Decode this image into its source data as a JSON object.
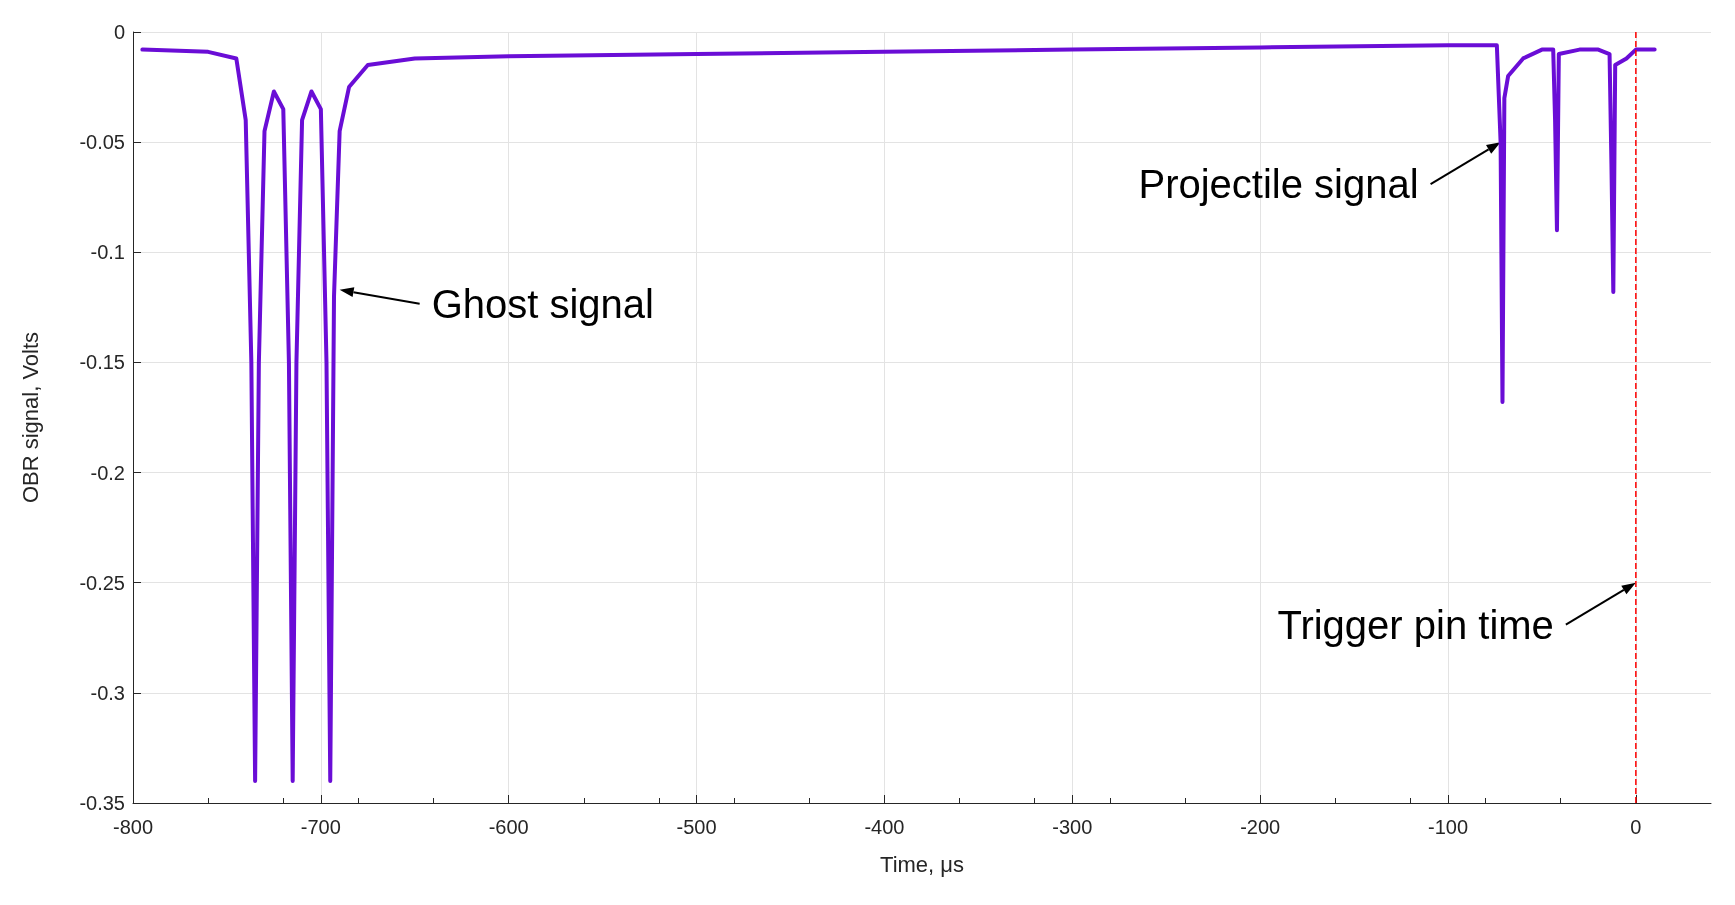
{
  "chart_data": {
    "type": "line",
    "xlabel": "Time, μs",
    "ylabel": "OBR signal, Volts",
    "xlim": [
      -800,
      40
    ],
    "xticks": [
      -800,
      -700,
      -600,
      -500,
      -400,
      -300,
      -200,
      -100,
      0
    ],
    "ylim": [
      -0.35,
      0
    ],
    "yticks": [
      -0.35,
      -0.3,
      -0.25,
      -0.2,
      -0.15,
      -0.1,
      -0.05,
      0
    ],
    "grid": true,
    "marker": "none",
    "line_style": "solid",
    "series": [
      {
        "color": "#6a0dd6",
        "x": [
          -795,
          -760,
          -745,
          -740,
          -737,
          -735,
          -733,
          -730,
          -725,
          -720,
          -717,
          -715,
          -713,
          -710,
          -705,
          -700,
          -697,
          -695,
          -693,
          -690,
          -685,
          -675,
          -650,
          -600,
          -500,
          -400,
          -300,
          -200,
          -100,
          -74,
          -72,
          -71,
          -70,
          -68,
          -60,
          -50,
          -44,
          -43,
          -42,
          -41,
          -30,
          -20,
          -14,
          -13,
          -12,
          -11,
          -5,
          0,
          10
        ],
        "values": [
          -0.008,
          -0.009,
          -0.012,
          -0.04,
          -0.15,
          -0.34,
          -0.15,
          -0.045,
          -0.027,
          -0.035,
          -0.15,
          -0.34,
          -0.15,
          -0.04,
          -0.027,
          -0.035,
          -0.15,
          -0.34,
          -0.12,
          -0.045,
          -0.025,
          -0.015,
          -0.012,
          -0.011,
          -0.01,
          -0.009,
          -0.008,
          -0.007,
          -0.006,
          -0.006,
          -0.05,
          -0.168,
          -0.03,
          -0.02,
          -0.012,
          -0.008,
          -0.008,
          -0.04,
          -0.09,
          -0.01,
          -0.008,
          -0.008,
          -0.01,
          -0.06,
          -0.118,
          -0.015,
          -0.012,
          -0.008,
          -0.008
        ]
      }
    ],
    "ref_lines": [
      {
        "axis": "x",
        "value": 0,
        "color": "#ff0000",
        "line_style": "dashed"
      }
    ],
    "annotations": [
      {
        "text": "Ghost signal",
        "x": -690,
        "y": -0.117
      },
      {
        "text": "Projectile signal",
        "x": -72,
        "y": -0.05
      },
      {
        "text": "Trigger pin time",
        "x": 0,
        "y": -0.25
      }
    ]
  }
}
